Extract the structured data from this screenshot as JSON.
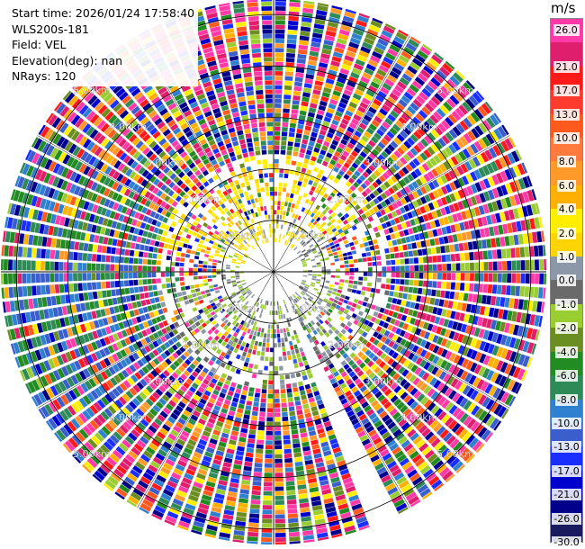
{
  "info": {
    "start_time": "Start time: 2026/01/24 17:58:40",
    "instrument": "WLS200s-181",
    "field": "Field: VEL",
    "elevation": "Elevation(deg): nan",
    "nrays": "NRays: 120"
  },
  "colorbar": {
    "unit": "m/s",
    "levels": [
      {
        "label": "26.0",
        "color": "#ff3aa8"
      },
      {
        "label": "21.0",
        "color": "#e01e6e"
      },
      {
        "label": "17.0",
        "color": "#ff1a1a"
      },
      {
        "label": "13.0",
        "color": "#ff3b30"
      },
      {
        "label": "10.0",
        "color": "#ff5a1e"
      },
      {
        "label": "8.0",
        "color": "#ff7a3c"
      },
      {
        "label": "6.0",
        "color": "#ff9a2a"
      },
      {
        "label": "4.0",
        "color": "#ffb000"
      },
      {
        "label": "2.0",
        "color": "#ffee00"
      },
      {
        "label": "1.0",
        "color": "#ffd400"
      },
      {
        "label": "0.0",
        "color": "#8c98a8"
      },
      {
        "label": "-1.0",
        "color": "#6a6a6a"
      },
      {
        "label": "-2.0",
        "color": "#9acd32"
      },
      {
        "label": "-4.0",
        "color": "#6b8e23"
      },
      {
        "label": "-6.0",
        "color": "#228b22"
      },
      {
        "label": "-8.0",
        "color": "#2e8b57"
      },
      {
        "label": "-10.0",
        "color": "#3080d0"
      },
      {
        "label": "-13.0",
        "color": "#3a5fcd"
      },
      {
        "label": "-17.0",
        "color": "#1a2fff"
      },
      {
        "label": "-21.0",
        "color": "#0000cd"
      },
      {
        "label": "-26.0",
        "color": "#00008b"
      },
      {
        "label": "-30.0",
        "color": "#1a1a5e"
      }
    ]
  },
  "map_data": {
    "range_rings_km": [
      "1.00km",
      "2.00km",
      "3.00km",
      "4.00km",
      "5.00km"
    ],
    "max_range_km": 5.3,
    "rays": 120,
    "gap_azimuth_deg": 154
  }
}
